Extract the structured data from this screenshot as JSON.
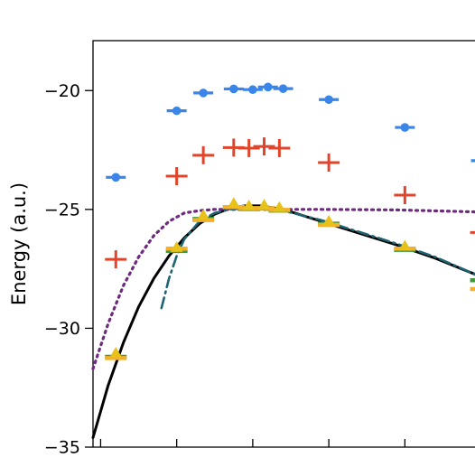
{
  "chart_data": {
    "type": "scatter",
    "ylabel": "Energy (a.u.)",
    "xlabel": "",
    "ylim": [
      -35,
      -17.9
    ],
    "xlim": [
      0,
      5.2
    ],
    "yticks": [
      {
        "value": -20,
        "label": "−20"
      },
      {
        "value": -25,
        "label": "−25"
      },
      {
        "value": -30,
        "label": "−30"
      },
      {
        "value": -35,
        "label": "−35"
      }
    ],
    "xticks": [
      0.1,
      1.1,
      2.1,
      3.1,
      4.1,
      5.1
    ],
    "grid": false,
    "legend": "none",
    "series": [
      {
        "marker": "circle-dash",
        "color": "#3a85e8",
        "points": [
          [
            0.3,
            -23.65
          ],
          [
            1.1,
            -20.85
          ],
          [
            1.45,
            -20.1
          ],
          [
            1.85,
            -19.93
          ],
          [
            2.1,
            -19.96
          ],
          [
            2.3,
            -19.85
          ],
          [
            2.5,
            -19.92
          ],
          [
            3.1,
            -20.38
          ],
          [
            4.1,
            -21.55
          ],
          [
            5.1,
            -22.95
          ]
        ]
      },
      {
        "marker": "plus",
        "color": "#e0452c",
        "points": [
          [
            0.3,
            -27.1
          ],
          [
            1.1,
            -23.6
          ],
          [
            1.45,
            -22.72
          ],
          [
            1.85,
            -22.4
          ],
          [
            2.05,
            -22.42
          ],
          [
            2.25,
            -22.35
          ],
          [
            2.45,
            -22.42
          ],
          [
            3.1,
            -23.03
          ],
          [
            4.1,
            -24.4
          ],
          [
            5.1,
            -25.97
          ]
        ]
      },
      {
        "marker": "green-dash",
        "color": "#3c9a3e",
        "points": [
          [
            0.3,
            -31.2
          ],
          [
            1.1,
            -26.75
          ],
          [
            1.45,
            -25.4
          ],
          [
            1.85,
            -24.9
          ],
          [
            2.05,
            -24.98
          ],
          [
            2.25,
            -24.95
          ],
          [
            2.45,
            -25.05
          ],
          [
            3.1,
            -25.6
          ],
          [
            4.1,
            -26.7
          ],
          [
            5.1,
            -27.98
          ]
        ]
      },
      {
        "marker": "orange-dash",
        "color": "#f3b02a",
        "points": [
          [
            0.3,
            -31.25
          ],
          [
            1.1,
            -26.65
          ],
          [
            1.45,
            -25.45
          ],
          [
            1.85,
            -24.9
          ],
          [
            2.05,
            -24.95
          ],
          [
            2.25,
            -24.95
          ],
          [
            2.45,
            -25.02
          ],
          [
            3.1,
            -25.65
          ],
          [
            4.1,
            -26.65
          ],
          [
            5.1,
            -28.35
          ]
        ]
      },
      {
        "marker": "triangle",
        "color": "#e8c21a",
        "points": [
          [
            0.3,
            -31.05
          ],
          [
            1.1,
            -26.6
          ],
          [
            1.45,
            -25.25
          ],
          [
            1.85,
            -24.75
          ],
          [
            2.05,
            -24.85
          ],
          [
            2.25,
            -24.82
          ],
          [
            2.45,
            -24.92
          ],
          [
            3.1,
            -25.5
          ],
          [
            4.1,
            -26.55
          ],
          [
            5.1,
            -28.15
          ]
        ]
      }
    ],
    "curves": [
      {
        "style": "solid",
        "color": "#000000",
        "points": [
          [
            0,
            -34.6
          ],
          [
            0.2,
            -32.4
          ],
          [
            0.4,
            -30.6
          ],
          [
            0.6,
            -29.1
          ],
          [
            0.8,
            -27.9
          ],
          [
            1.0,
            -26.95
          ],
          [
            1.2,
            -26.2
          ],
          [
            1.4,
            -25.6
          ],
          [
            1.6,
            -25.2
          ],
          [
            1.8,
            -24.95
          ],
          [
            2.0,
            -24.85
          ],
          [
            2.2,
            -24.85
          ],
          [
            2.5,
            -25.0
          ],
          [
            3.0,
            -25.5
          ],
          [
            3.5,
            -26.0
          ],
          [
            4.0,
            -26.5
          ],
          [
            4.5,
            -27.05
          ],
          [
            5.0,
            -27.7
          ],
          [
            5.2,
            -28.0
          ]
        ]
      },
      {
        "style": "dotted",
        "color": "#6e2a7e",
        "points": [
          [
            0,
            -31.7
          ],
          [
            0.2,
            -29.8
          ],
          [
            0.4,
            -28.2
          ],
          [
            0.6,
            -27.0
          ],
          [
            0.8,
            -26.1
          ],
          [
            1.0,
            -25.5
          ],
          [
            1.2,
            -25.15
          ],
          [
            1.4,
            -25.05
          ],
          [
            1.6,
            -25.0
          ],
          [
            2.0,
            -25.0
          ],
          [
            3.0,
            -25.0
          ],
          [
            4.0,
            -25.02
          ],
          [
            5.0,
            -25.1
          ],
          [
            5.2,
            -25.15
          ]
        ]
      },
      {
        "style": "dashdot",
        "color": "#1e6470",
        "points": [
          [
            0.9,
            -29.15
          ],
          [
            1.0,
            -27.9
          ],
          [
            1.1,
            -26.95
          ],
          [
            1.2,
            -26.25
          ],
          [
            1.4,
            -25.5
          ],
          [
            1.6,
            -25.15
          ],
          [
            1.8,
            -25.0
          ],
          [
            2.0,
            -24.95
          ],
          [
            2.5,
            -25.05
          ],
          [
            3.0,
            -25.45
          ],
          [
            3.5,
            -25.95
          ],
          [
            4.0,
            -26.45
          ],
          [
            4.5,
            -27.0
          ],
          [
            5.0,
            -27.7
          ],
          [
            5.2,
            -28.05
          ]
        ]
      }
    ]
  }
}
